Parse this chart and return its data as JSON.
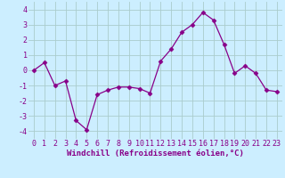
{
  "x": [
    0,
    1,
    2,
    3,
    4,
    5,
    6,
    7,
    8,
    9,
    10,
    11,
    12,
    13,
    14,
    15,
    16,
    17,
    18,
    19,
    20,
    21,
    22,
    23
  ],
  "y": [
    0.0,
    0.5,
    -1.0,
    -0.7,
    -3.3,
    -3.9,
    -1.6,
    -1.3,
    -1.1,
    -1.1,
    -1.2,
    -1.5,
    0.6,
    1.4,
    2.5,
    3.0,
    3.8,
    3.3,
    1.7,
    -0.2,
    0.3,
    -0.2,
    -1.3,
    -1.4
  ],
  "line_color": "#880088",
  "marker": "D",
  "marker_size": 2.5,
  "bg_color": "#cceeff",
  "grid_color": "#aacccc",
  "xlabel": "Windchill (Refroidissement éolien,°C)",
  "xlim": [
    -0.5,
    23.5
  ],
  "ylim": [
    -4.5,
    4.5
  ],
  "yticks": [
    -4,
    -3,
    -2,
    -1,
    0,
    1,
    2,
    3,
    4
  ],
  "xticks": [
    0,
    1,
    2,
    3,
    4,
    5,
    6,
    7,
    8,
    9,
    10,
    11,
    12,
    13,
    14,
    15,
    16,
    17,
    18,
    19,
    20,
    21,
    22,
    23
  ],
  "tick_color": "#880088",
  "label_color": "#880088",
  "label_fontsize": 6.5,
  "tick_fontsize": 6.0
}
